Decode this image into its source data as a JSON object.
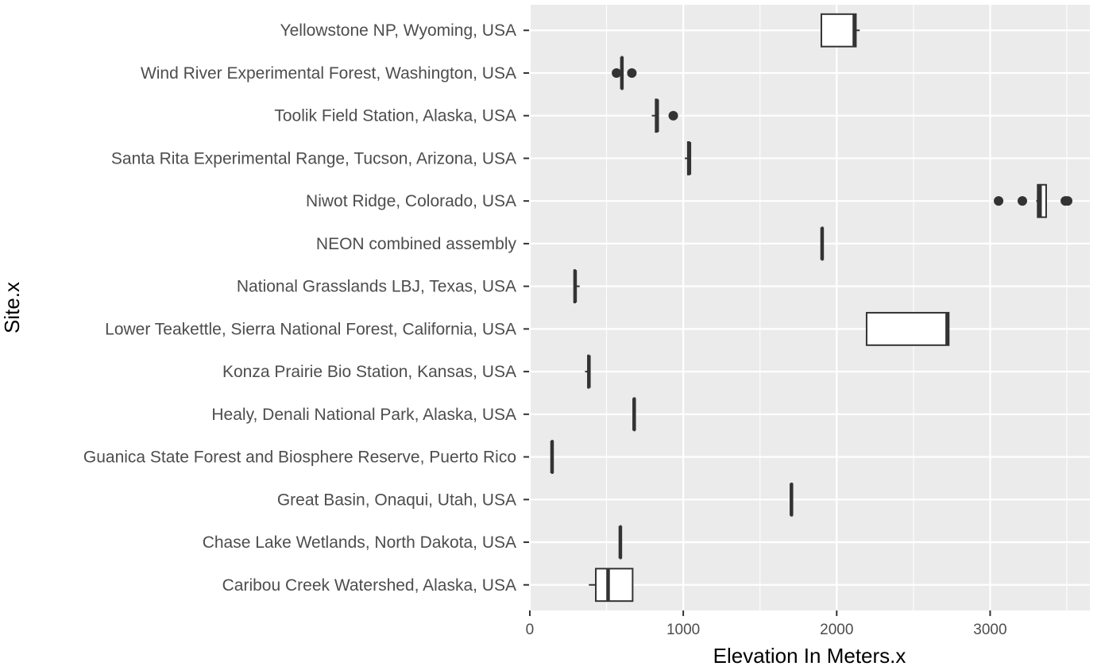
{
  "chart_data": {
    "type": "boxplot",
    "orientation": "horizontal",
    "xlabel": "Elevation In Meters.x",
    "ylabel": "Site.x",
    "xlim": [
      -5,
      3650
    ],
    "xticks": [
      0,
      1000,
      2000,
      3000
    ],
    "grid": true,
    "legend": "none",
    "colors": {
      "panel": "#ebebeb",
      "grid": "#ffffff",
      "box_stroke": "#333333",
      "box_fill": "#ffffff",
      "tick_text": "#4d4d4d"
    },
    "categories": [
      "Yellowstone NP, Wyoming, USA",
      "Wind River Experimental Forest, Washington, USA",
      "Toolik Field Station, Alaska, USA",
      "Santa Rita Experimental Range, Tucson, Arizona, USA",
      "Niwot Ridge, Colorado, USA",
      "NEON combined assembly",
      "National Grasslands LBJ, Texas, USA",
      "Lower Teakettle, Sierra National Forest, California, USA",
      "Konza Prairie Bio Station, Kansas, USA",
      "Healy, Denali National Park, Alaska, USA",
      "Guanica State Forest and Biosphere Reserve, Puerto Rico",
      "Great Basin, Onaqui, Utah, USA",
      "Chase Lake Wetlands, North Dakota, USA",
      "Caribou Creek Watershed, Alaska, USA"
    ],
    "boxes": [
      {
        "min": 1900,
        "q1": 1900,
        "median": 2115,
        "q3": 2125,
        "max": 2150,
        "outliers": []
      },
      {
        "min": 600,
        "q1": 600,
        "median": 600,
        "q3": 600,
        "max": 600,
        "outliers": [
          565,
          665
        ]
      },
      {
        "min": 795,
        "q1": 820,
        "median": 830,
        "q3": 830,
        "max": 830,
        "outliers": [
          935
        ]
      },
      {
        "min": 1010,
        "q1": 1030,
        "median": 1040,
        "q3": 1040,
        "max": 1040,
        "outliers": []
      },
      {
        "min": 3300,
        "q1": 3310,
        "median": 3325,
        "q3": 3365,
        "max": 3365,
        "outliers": [
          3055,
          3210,
          3490,
          3505
        ]
      },
      {
        "min": 1905,
        "q1": 1905,
        "median": 1905,
        "q3": 1905,
        "max": 1905,
        "outliers": []
      },
      {
        "min": 290,
        "q1": 290,
        "median": 295,
        "q3": 295,
        "max": 325,
        "outliers": []
      },
      {
        "min": 2195,
        "q1": 2195,
        "median": 2720,
        "q3": 2730,
        "max": 2730,
        "outliers": []
      },
      {
        "min": 360,
        "q1": 380,
        "median": 385,
        "q3": 385,
        "max": 385,
        "outliers": []
      },
      {
        "min": 680,
        "q1": 680,
        "median": 680,
        "q3": 680,
        "max": 680,
        "outliers": []
      },
      {
        "min": 145,
        "q1": 145,
        "median": 145,
        "q3": 145,
        "max": 145,
        "outliers": []
      },
      {
        "min": 1705,
        "q1": 1705,
        "median": 1705,
        "q3": 1705,
        "max": 1705,
        "outliers": []
      },
      {
        "min": 590,
        "q1": 590,
        "median": 590,
        "q3": 590,
        "max": 590,
        "outliers": []
      },
      {
        "min": 385,
        "q1": 430,
        "median": 510,
        "q3": 670,
        "max": 670,
        "outliers": []
      }
    ]
  }
}
